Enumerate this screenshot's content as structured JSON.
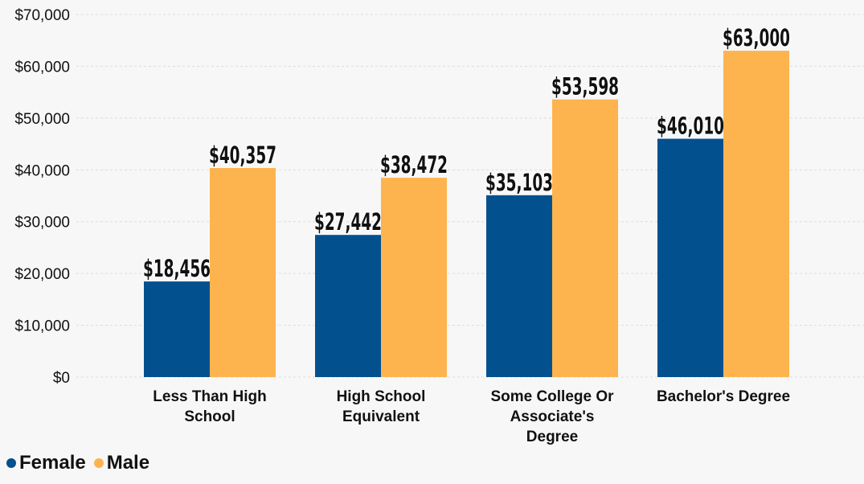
{
  "chart_data": {
    "type": "bar",
    "categories": [
      [
        "Less Than High",
        "School"
      ],
      [
        "High School",
        "Equivalent"
      ],
      [
        "Some College Or",
        "Associate's",
        "Degree"
      ],
      [
        "Bachelor's Degree"
      ]
    ],
    "series": [
      {
        "name": "Female",
        "color": "#03508f",
        "values": [
          18456,
          27442,
          35103,
          46010
        ],
        "labels": [
          "$18,456",
          "$27,442",
          "$35,103",
          "$46,010"
        ]
      },
      {
        "name": "Male",
        "color": "#fdb44f",
        "values": [
          40357,
          38472,
          53598,
          63000
        ],
        "labels": [
          "$40,357",
          "$38,472",
          "$53,598",
          "$63,000"
        ]
      }
    ],
    "ylim": [
      0,
      70000
    ],
    "yticks": [
      0,
      10000,
      20000,
      30000,
      40000,
      50000,
      60000,
      70000
    ],
    "ytick_labels": [
      "$0",
      "$10,000",
      "$20,000",
      "$30,000",
      "$40,000",
      "$50,000",
      "$60,000",
      "$70,000"
    ],
    "grid": true,
    "legend_position": "bottom-left",
    "title": "",
    "xlabel": "",
    "ylabel": ""
  }
}
